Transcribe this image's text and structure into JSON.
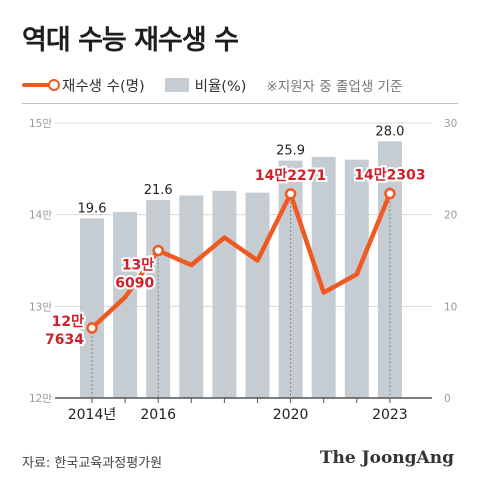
{
  "header": {
    "title": "역대 수능 재수생 수"
  },
  "legend": {
    "line_label": "재수생 수(명)",
    "bar_label": "비율(%)",
    "note": "※지원자 중 졸업생 기준"
  },
  "footer": {
    "source": "자료: 한국교육과정평가원",
    "brand": "The JoongAng"
  },
  "colors": {
    "line": "#f05a22",
    "bars": "#c5ccd2",
    "highlight_label": "#d0202a",
    "grid": "#d8d8d8"
  },
  "chart_data": {
    "type": "bar+line",
    "x": [
      2014,
      2015,
      2016,
      2017,
      2018,
      2019,
      2020,
      2021,
      2022,
      2023
    ],
    "x_tick_labels": [
      {
        "x": 2014,
        "label": "2014년"
      },
      {
        "x": 2016,
        "label": "2016"
      },
      {
        "x": 2020,
        "label": "2020"
      },
      {
        "x": 2023,
        "label": "2023"
      }
    ],
    "bars": {
      "name": "비율(%)",
      "values": [
        19.6,
        20.3,
        21.6,
        22.1,
        22.6,
        22.4,
        25.9,
        26.3,
        26.0,
        28.0
      ],
      "labels": [
        {
          "x": 2014,
          "text": "19.6"
        },
        {
          "x": 2016,
          "text": "21.6"
        },
        {
          "x": 2020,
          "text": "25.9"
        },
        {
          "x": 2023,
          "text": "28.0"
        }
      ]
    },
    "line": {
      "name": "재수생 수(명)",
      "values": [
        127634,
        131000,
        136090,
        134500,
        137500,
        135000,
        142271,
        131500,
        133500,
        142303
      ],
      "labels": [
        {
          "x": 2014,
          "lines": [
            "12만",
            "7634"
          ]
        },
        {
          "x": 2016,
          "lines": [
            "13만",
            "6090"
          ]
        },
        {
          "x": 2020,
          "lines": [
            "14만2271"
          ]
        },
        {
          "x": 2023,
          "lines": [
            "14만2303"
          ]
        }
      ]
    },
    "y_left": {
      "range": [
        120000,
        150000
      ],
      "ticks": [
        {
          "value": 150000,
          "label": "15만"
        },
        {
          "value": 140000,
          "label": "14만"
        },
        {
          "value": 130000,
          "label": "13만"
        },
        {
          "value": 120000,
          "label": "12만"
        }
      ]
    },
    "y_right": {
      "range": [
        0,
        30
      ],
      "ticks": [
        {
          "value": 30,
          "label": "30"
        },
        {
          "value": 20,
          "label": "20"
        },
        {
          "value": 10,
          "label": "10"
        },
        {
          "value": 0,
          "label": "0"
        }
      ]
    },
    "grid": true
  }
}
